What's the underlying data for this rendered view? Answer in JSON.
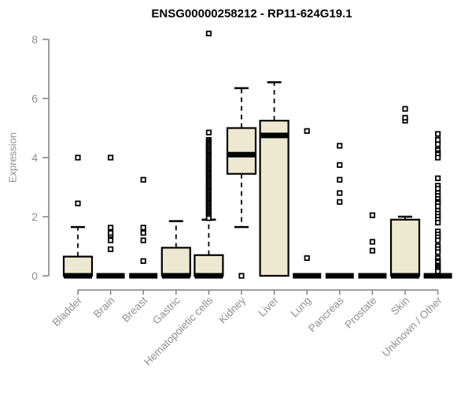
{
  "title": "ENSG00000258212 - RP11-624G19.1",
  "chart_data": {
    "type": "boxplot",
    "title": "ENSG00000258212 - RP11-624G19.1",
    "xlabel": "",
    "ylabel": "Expression",
    "ylim": [
      0,
      8
    ],
    "yticks": [
      0,
      2,
      4,
      6,
      8
    ],
    "grid": false,
    "legend": null,
    "box_fill": "#EDE8D0",
    "box_stroke": "#000000",
    "axis_color": "#7f7f7f",
    "label_color": "#8f8f8f",
    "categories": [
      "Bladder",
      "Brain",
      "Breast",
      "Gastric",
      "Hematopoietic cells",
      "Kidney",
      "Liver",
      "Lung",
      "Pancreas",
      "Prostate",
      "Skin",
      "Unknown / Other"
    ],
    "boxes": [
      {
        "label": "Bladder",
        "whisker_low": 0,
        "q1": 0,
        "median": 0,
        "q3": 0.65,
        "whisker_high": 1.65,
        "outliers": [
          2.45,
          4.0
        ]
      },
      {
        "label": "Brain",
        "whisker_low": 0,
        "q1": 0,
        "median": 0,
        "q3": 0,
        "whisker_high": 0,
        "outliers": [
          0.9,
          1.2,
          1.38,
          1.45,
          1.63,
          4.0
        ]
      },
      {
        "label": "Breast",
        "whisker_low": 0,
        "q1": 0,
        "median": 0,
        "q3": 0,
        "whisker_high": 0,
        "outliers": [
          0.5,
          1.2,
          1.45,
          1.63,
          3.25
        ]
      },
      {
        "label": "Gastric",
        "whisker_low": 0,
        "q1": 0,
        "median": 0,
        "q3": 0.95,
        "whisker_high": 1.85,
        "outliers": []
      },
      {
        "label": "Hematopoietic cells",
        "whisker_low": 0,
        "q1": 0,
        "median": 0,
        "q3": 0.7,
        "whisker_high": 1.9,
        "outliers": [
          8.2,
          4.85,
          4.6,
          4.55,
          4.5,
          4.45,
          4.4,
          4.35,
          4.3,
          4.25,
          4.2,
          4.15,
          4.1,
          4.05,
          4.0,
          3.95,
          3.9,
          3.85,
          3.8,
          3.75,
          3.7,
          3.65,
          3.6,
          3.55,
          3.5,
          3.45,
          3.4,
          3.35,
          3.3,
          3.25,
          3.2,
          3.15,
          3.1,
          3.05,
          3.0,
          2.95,
          2.9,
          2.85,
          2.8,
          2.75,
          2.7,
          2.65,
          2.6,
          2.55,
          2.5,
          2.45,
          2.4,
          2.35,
          2.3,
          2.25,
          2.2,
          2.15,
          2.1,
          2.05,
          2.0,
          1.95
        ]
      },
      {
        "label": "Kidney",
        "whisker_low": 1.65,
        "q1": 3.45,
        "median": 4.1,
        "q3": 5.0,
        "whisker_high": 6.35,
        "outliers": [
          0
        ]
      },
      {
        "label": "Liver",
        "whisker_low": 0,
        "q1": 0,
        "median": 4.75,
        "q3": 5.25,
        "whisker_high": 6.55,
        "outliers": []
      },
      {
        "label": "Lung",
        "whisker_low": 0,
        "q1": 0,
        "median": 0,
        "q3": 0,
        "whisker_high": 0,
        "outliers": [
          0.6,
          4.9
        ]
      },
      {
        "label": "Pancreas",
        "whisker_low": 0,
        "q1": 0,
        "median": 0,
        "q3": 0,
        "whisker_high": 0,
        "outliers": [
          2.5,
          2.8,
          3.25,
          3.75,
          4.4
        ]
      },
      {
        "label": "Prostate",
        "whisker_low": 0,
        "q1": 0,
        "median": 0,
        "q3": 0,
        "whisker_high": 0,
        "outliers": [
          0.85,
          1.15,
          2.05
        ]
      },
      {
        "label": "Skin",
        "whisker_low": 0,
        "q1": 0,
        "median": 0,
        "q3": 1.9,
        "whisker_high": 2.0,
        "outliers": [
          5.25,
          5.35,
          5.65
        ]
      },
      {
        "label": "Unknown / Other",
        "whisker_low": 0,
        "q1": 0,
        "median": 0,
        "q3": 0,
        "whisker_high": 0,
        "outliers": [
          4.8,
          4.6,
          4.45,
          4.25,
          4.15,
          4.1,
          4.0,
          3.3,
          3.05,
          2.95,
          2.8,
          2.7,
          2.6,
          2.5,
          2.45,
          2.35,
          2.2,
          2.1,
          2.0,
          1.9,
          1.8,
          1.5,
          1.4,
          1.3,
          1.2,
          1.0,
          0.9,
          0.8,
          0.6,
          0.5,
          0.45,
          0.35,
          0.3,
          0.25,
          0.2,
          0.15
        ]
      }
    ]
  }
}
